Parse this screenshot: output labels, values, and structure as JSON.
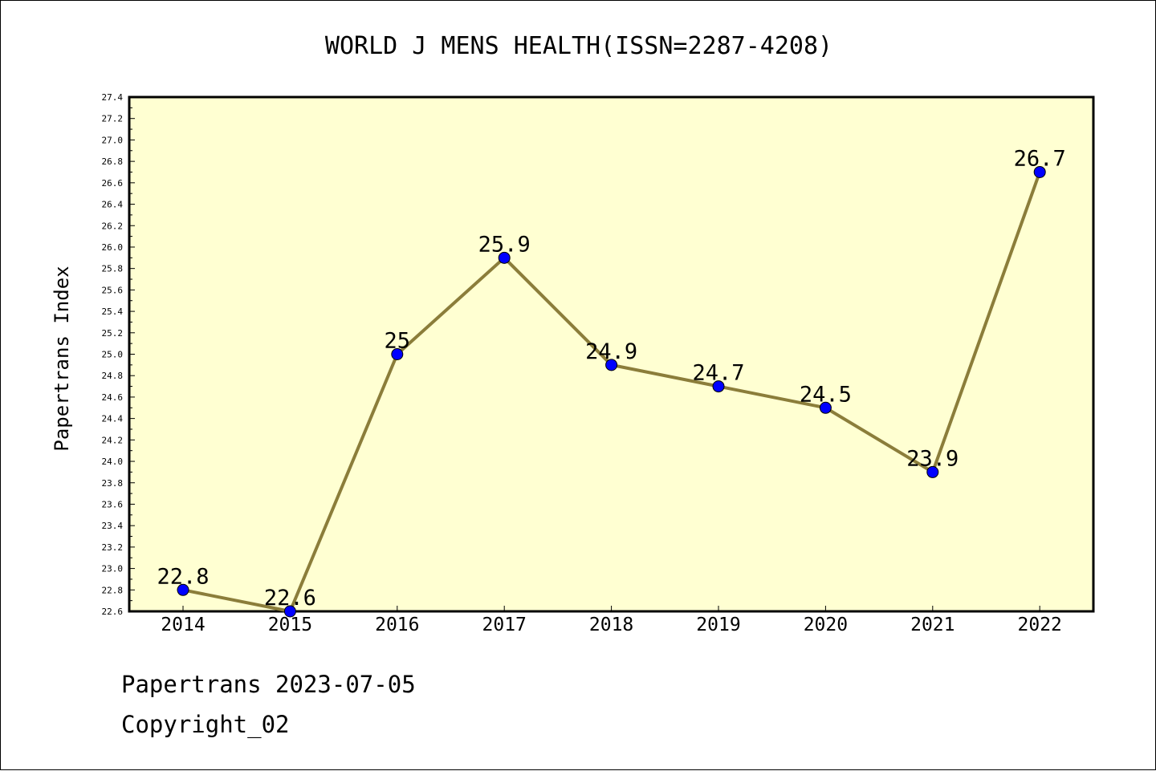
{
  "chart_data": {
    "type": "line",
    "title": "WORLD J MENS HEALTH(ISSN=2287-4208)",
    "ylabel": "Papertrans Index",
    "xlabel": "",
    "categories": [
      "2014",
      "2015",
      "2016",
      "2017",
      "2018",
      "2019",
      "2020",
      "2021",
      "2022"
    ],
    "values": [
      22.8,
      22.6,
      25.0,
      25.9,
      24.9,
      24.7,
      24.5,
      23.9,
      26.7
    ],
    "data_labels": [
      "22.8",
      "22.6",
      "25",
      "25.9",
      "24.9",
      "24.7",
      "24.5",
      "23.9",
      "26.7"
    ],
    "ylim": [
      22.6,
      27.4
    ],
    "ytick_step": 0.2,
    "grid": false,
    "colors": {
      "line": "#8b7d3a",
      "marker": "#0000ff",
      "plot_bg": "#ffffd2"
    }
  },
  "footer": {
    "source": "Papertrans 2023-07-05",
    "copyright": "Copyright_02"
  }
}
